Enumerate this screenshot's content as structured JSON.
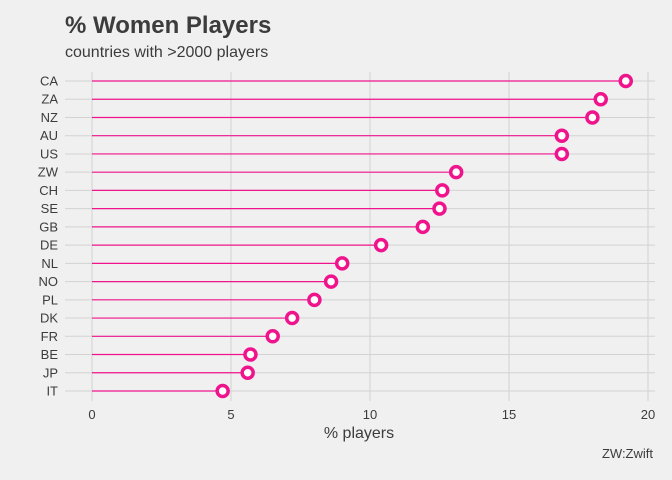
{
  "title": "% Women Players",
  "subtitle": "countries with >2000 players",
  "caption": "ZW:Zwift",
  "colors": {
    "background": "#f0f0f0",
    "grid": "#d2d2d2",
    "accent": "#f0148c",
    "text": "#3c3c3c"
  },
  "chart_data": {
    "type": "lollipop",
    "title": "% Women Players",
    "subtitle": "countries with >2000 players",
    "xlabel": "% players",
    "ylabel": "",
    "xlim": [
      0,
      20
    ],
    "xticks": [
      0,
      5,
      10,
      15,
      20
    ],
    "grid": true,
    "categories": [
      "CA",
      "ZA",
      "NZ",
      "AU",
      "US",
      "ZW",
      "CH",
      "SE",
      "GB",
      "DE",
      "NL",
      "NO",
      "PL",
      "DK",
      "FR",
      "BE",
      "JP",
      "IT"
    ],
    "values": [
      19.2,
      18.3,
      18.0,
      16.9,
      16.9,
      13.1,
      12.6,
      12.5,
      11.9,
      10.4,
      9.0,
      8.6,
      8.0,
      7.2,
      6.5,
      5.7,
      5.6,
      4.7
    ]
  }
}
